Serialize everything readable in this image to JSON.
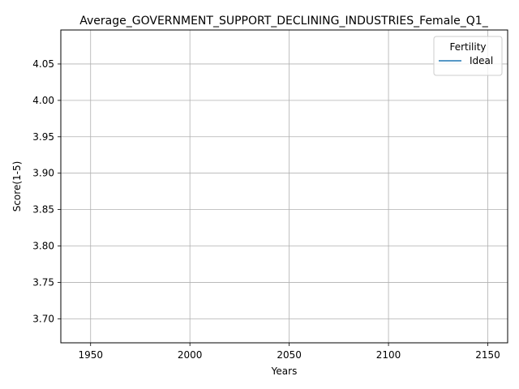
{
  "chart_data": {
    "type": "line",
    "title": "Average_GOVERNMENT_SUPPORT_DECLINING_INDUSTRIES_Female_Q1_",
    "xlabel": "Years",
    "ylabel": "Score(1-5)",
    "xlim": [
      1935,
      2160
    ],
    "ylim": [
      3.667,
      4.0967
    ],
    "x_ticks": [
      1950,
      2000,
      2050,
      2100,
      2150
    ],
    "x_tick_labels": [
      "1950",
      "2000",
      "2050",
      "2100",
      "2150"
    ],
    "y_ticks": [
      3.7,
      3.75,
      3.8,
      3.85,
      3.9,
      3.95,
      4.0,
      4.05
    ],
    "y_tick_labels": [
      "3.70",
      "3.75",
      "3.80",
      "3.85",
      "3.90",
      "3.95",
      "4.00",
      "4.05"
    ],
    "grid": true,
    "legend": {
      "title": "Fertility",
      "placement": "top-right"
    },
    "series": [
      {
        "name": "Ideal",
        "color": "#1f77b4",
        "x": [],
        "y": []
      }
    ]
  }
}
